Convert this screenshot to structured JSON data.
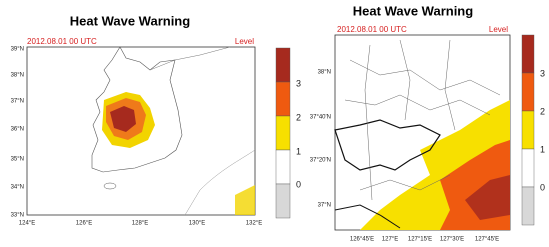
{
  "left_panel": {
    "title": "Heat Wave Warning",
    "date": "2012.08.01  00 UTC",
    "level": "Level",
    "lat_labels": [
      "39°N",
      "38°N",
      "37°N",
      "36°N",
      "35°N",
      "34°N",
      "33°N"
    ],
    "lon_labels": [
      "124°E",
      "126°E",
      "128°E",
      "130°E",
      "132°E"
    ],
    "colorbar_labels": [
      "3",
      "2",
      "1",
      "0"
    ]
  },
  "right_panel": {
    "title": "Heat Wave Warning",
    "date": "2012.08.01  00 UTC",
    "level": "Level",
    "lat_labels": [
      "38°N",
      "37°40'N",
      "37°20'N",
      "37°N"
    ],
    "lon_labels": [
      "126°45'E",
      "127°E",
      "127°15'E",
      "127°30'E",
      "127°45'E"
    ],
    "colorbar_labels": [
      "3",
      "2",
      "1",
      "0"
    ]
  }
}
